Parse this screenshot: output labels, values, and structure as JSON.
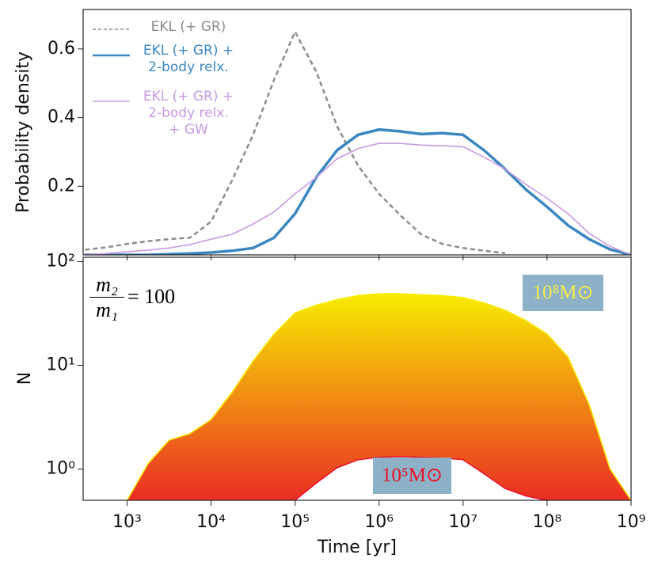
{
  "chart_data": [
    {
      "type": "line",
      "ylabel": "Probability density",
      "xscale": "log",
      "legend": "upper left",
      "x": [
        316,
        562,
        1000,
        1778,
        3162,
        5623,
        10000,
        17783,
        31623,
        56234,
        100000,
        177828,
        316228,
        562341,
        1000000,
        1778279,
        3162278,
        5623413,
        10000000,
        17782794,
        31622777,
        56234133,
        100000000,
        177827941,
        316227766,
        562341325,
        1000000000
      ],
      "series": [
        {
          "name": "EKL (+ GR)",
          "color": "#8c8c8c",
          "dash": true,
          "values": [
            0.015,
            0.022,
            0.032,
            0.04,
            0.046,
            0.05,
            0.097,
            0.217,
            0.35,
            0.51,
            0.65,
            0.535,
            0.375,
            0.26,
            0.178,
            0.116,
            0.06,
            0.032,
            0.02,
            0.012,
            0.005,
            null,
            null,
            null,
            null,
            null,
            null
          ]
        },
        {
          "name": "EKL (+ GR) +\n2-body relx.",
          "color": "#3b87c0",
          "dash": false,
          "values": [
            0,
            0,
            0,
            0,
            0.002,
            0.004,
            0.007,
            0.012,
            0.02,
            0.05,
            0.12,
            0.225,
            0.305,
            0.35,
            0.365,
            0.36,
            0.352,
            0.355,
            0.35,
            0.305,
            0.25,
            0.19,
            0.14,
            0.086,
            0.046,
            0.016,
            0
          ]
        },
        {
          "name": "EKL (+ GR) +\n2-body relx.\n+ GW",
          "color": "#c79be0",
          "dash": false,
          "values": [
            0,
            0.004,
            0.009,
            0.014,
            0.02,
            0.03,
            0.046,
            0.06,
            0.09,
            0.125,
            0.178,
            0.225,
            0.28,
            0.31,
            0.325,
            0.325,
            0.32,
            0.318,
            0.315,
            0.285,
            0.25,
            0.205,
            0.165,
            0.12,
            0.063,
            0.025,
            0
          ]
        }
      ],
      "xlim": [
        300,
        1000000000
      ],
      "xticks": [
        1000,
        10000,
        100000,
        1000000,
        10000000,
        100000000,
        1000000000
      ],
      "ylim": [
        0,
        0.715
      ],
      "yticks": [
        0.2,
        0.4,
        0.6
      ]
    },
    {
      "type": "fan",
      "ylabel": "N",
      "xlabel": "Time [yr]",
      "xscale": "log",
      "yscale": "log",
      "x": [
        316,
        562,
        1000,
        1778,
        3162,
        5623,
        10000,
        17783,
        31623,
        56234,
        100000,
        177828,
        316228,
        562341,
        1000000,
        1778279,
        3162278,
        5623413,
        10000000,
        17782794,
        31622777,
        56234133,
        100000000,
        177827941,
        316227766,
        562341325,
        1000000000
      ],
      "series": [
        {
          "color": "#f7ec00",
          "values": [
            null,
            null,
            0.5,
            1.13,
            1.9,
            2.2,
            3.0,
            5.5,
            11,
            20,
            32,
            38,
            43,
            47,
            49,
            49,
            48,
            47,
            45,
            40,
            34,
            27,
            20,
            12,
            4.2,
            1.0,
            0.5
          ]
        },
        {
          "color": "#e8102a",
          "values": [
            null,
            null,
            null,
            null,
            null,
            null,
            null,
            null,
            null,
            null,
            0.5,
            0.73,
            1.03,
            1.23,
            1.3,
            1.32,
            1.3,
            1.28,
            1.23,
            0.9,
            0.65,
            0.55,
            0.5,
            null,
            null,
            null,
            null
          ]
        }
      ],
      "xlim": [
        300,
        1000000000
      ],
      "xticks": [
        {
          "value": 1000,
          "label": "10³"
        },
        {
          "value": 10000,
          "label": "10⁴"
        },
        {
          "value": 100000,
          "label": "10⁵"
        },
        {
          "value": 1000000,
          "label": "10⁶"
        },
        {
          "value": 10000000,
          "label": "10⁷"
        },
        {
          "value": 100000000,
          "label": "10⁸"
        },
        {
          "value": 1000000000,
          "label": "10⁹"
        }
      ],
      "ylim": [
        0.5,
        110
      ],
      "yticks": [
        {
          "value": 1,
          "label": "10⁰"
        },
        {
          "value": 10,
          "label": "10¹"
        },
        {
          "value": 100,
          "label": "10²"
        }
      ],
      "ratio": {
        "numerator": "m₂",
        "denominator": "m₁",
        "value": "= 100"
      },
      "top_label": "10⁸M⊙",
      "bottom_label": "10⁵M⊙"
    }
  ]
}
